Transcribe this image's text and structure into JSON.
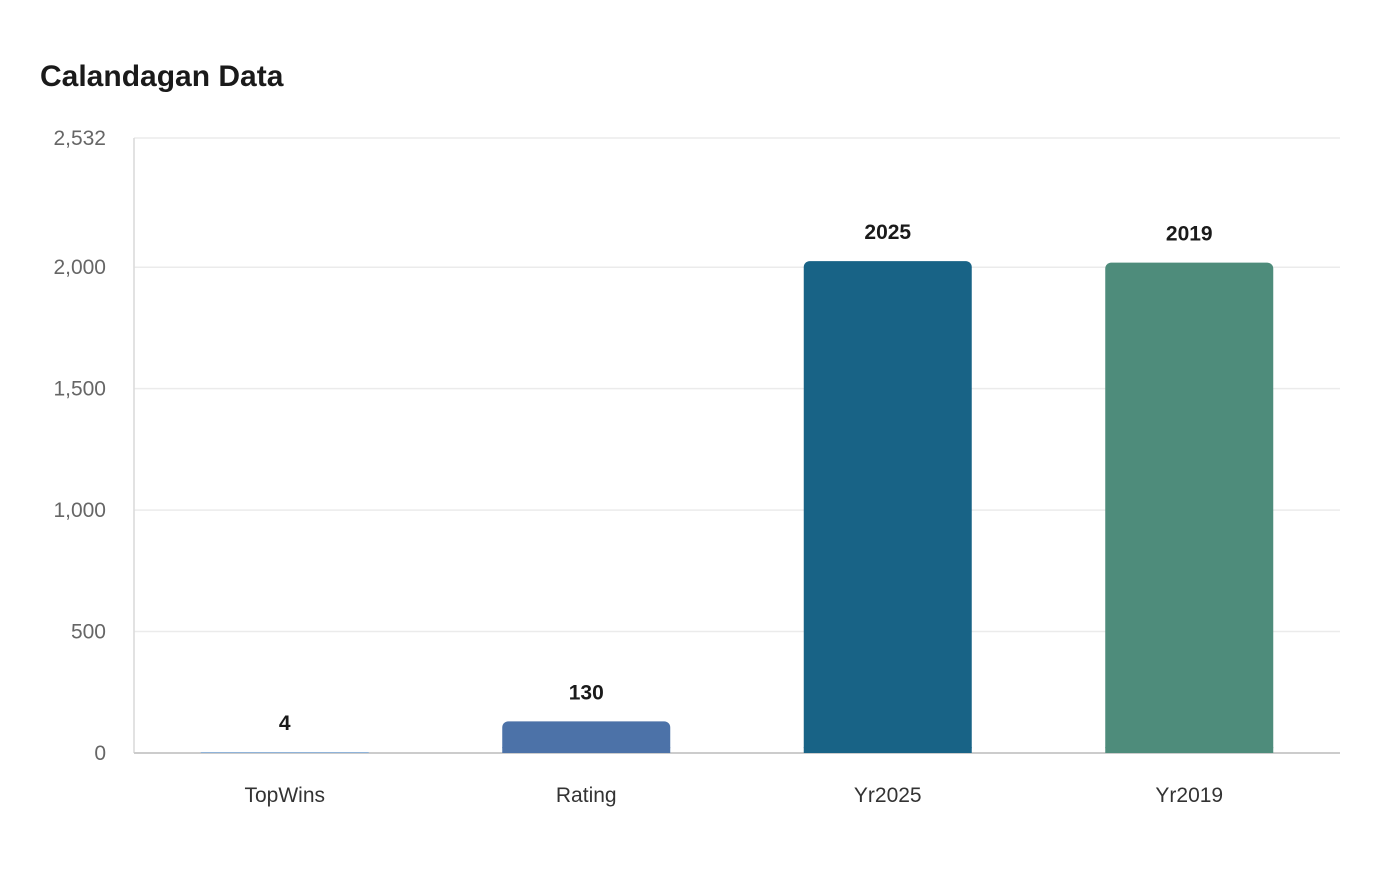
{
  "chart_data": {
    "type": "bar",
    "title": "Calandagan Data",
    "xlabel": "",
    "ylabel": "",
    "categories": [
      "TopWins",
      "Rating",
      "Yr2025",
      "Yr2019"
    ],
    "values": [
      4,
      130,
      2025,
      2019
    ],
    "value_labels": [
      "4",
      "130",
      "2025",
      "2019"
    ],
    "colors": [
      "#8fb3d9",
      "#4c72a8",
      "#186386",
      "#4e8c7b"
    ],
    "ylim": [
      0,
      2532
    ],
    "yticks": [
      0,
      500,
      1000,
      1500,
      2000,
      2532
    ],
    "ytick_labels": [
      "0",
      "500",
      "1,000",
      "1,500",
      "2,000",
      "2,532"
    ],
    "grid": true,
    "legend": "none"
  }
}
